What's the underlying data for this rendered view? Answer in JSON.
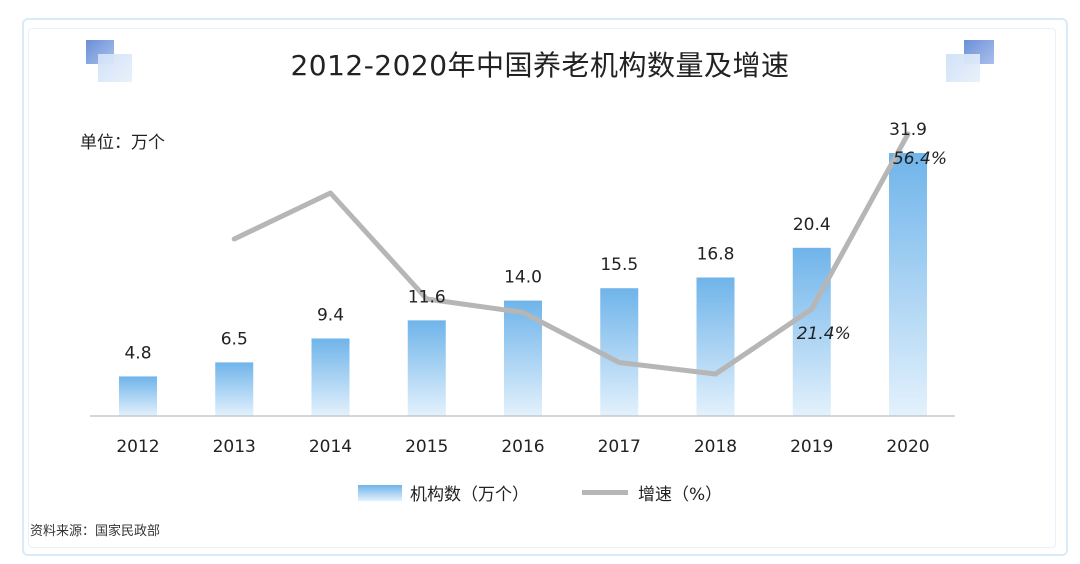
{
  "title": "2012-2020年中国养老机构数量及增速",
  "unit_label": "单位：万个",
  "source": "资料来源：国家民政部",
  "legend": {
    "bar_label": "机构数（万个）",
    "line_label": "增速（%）"
  },
  "colors": {
    "bar_top": "#6fb4ea",
    "bar_bottom": "#e3f1fc",
    "line": "#b6b6b6",
    "axis": "#bfbfbf"
  },
  "chart_data": {
    "type": "bar",
    "categories": [
      "2012",
      "2013",
      "2014",
      "2015",
      "2016",
      "2017",
      "2018",
      "2019",
      "2020"
    ],
    "series": [
      {
        "name": "机构数（万个）",
        "type": "bar",
        "values": [
          4.8,
          6.5,
          9.4,
          11.6,
          14.0,
          15.5,
          16.8,
          20.4,
          31.9
        ],
        "labels": [
          "4.8",
          "6.5",
          "9.4",
          "11.6",
          "14.0",
          "15.5",
          "16.8",
          "20.4",
          "31.9"
        ]
      },
      {
        "name": "增速（%）",
        "type": "line",
        "values": [
          null,
          35.4,
          44.6,
          23.4,
          20.7,
          10.7,
          8.4,
          21.4,
          56.4
        ],
        "labels": [
          null,
          null,
          null,
          null,
          null,
          null,
          null,
          "21.4%",
          "56.4%"
        ]
      }
    ],
    "ylim_bars": [
      0,
      33
    ],
    "ylim_line": [
      0,
      60
    ],
    "grid": false,
    "legend_position": "bottom"
  }
}
